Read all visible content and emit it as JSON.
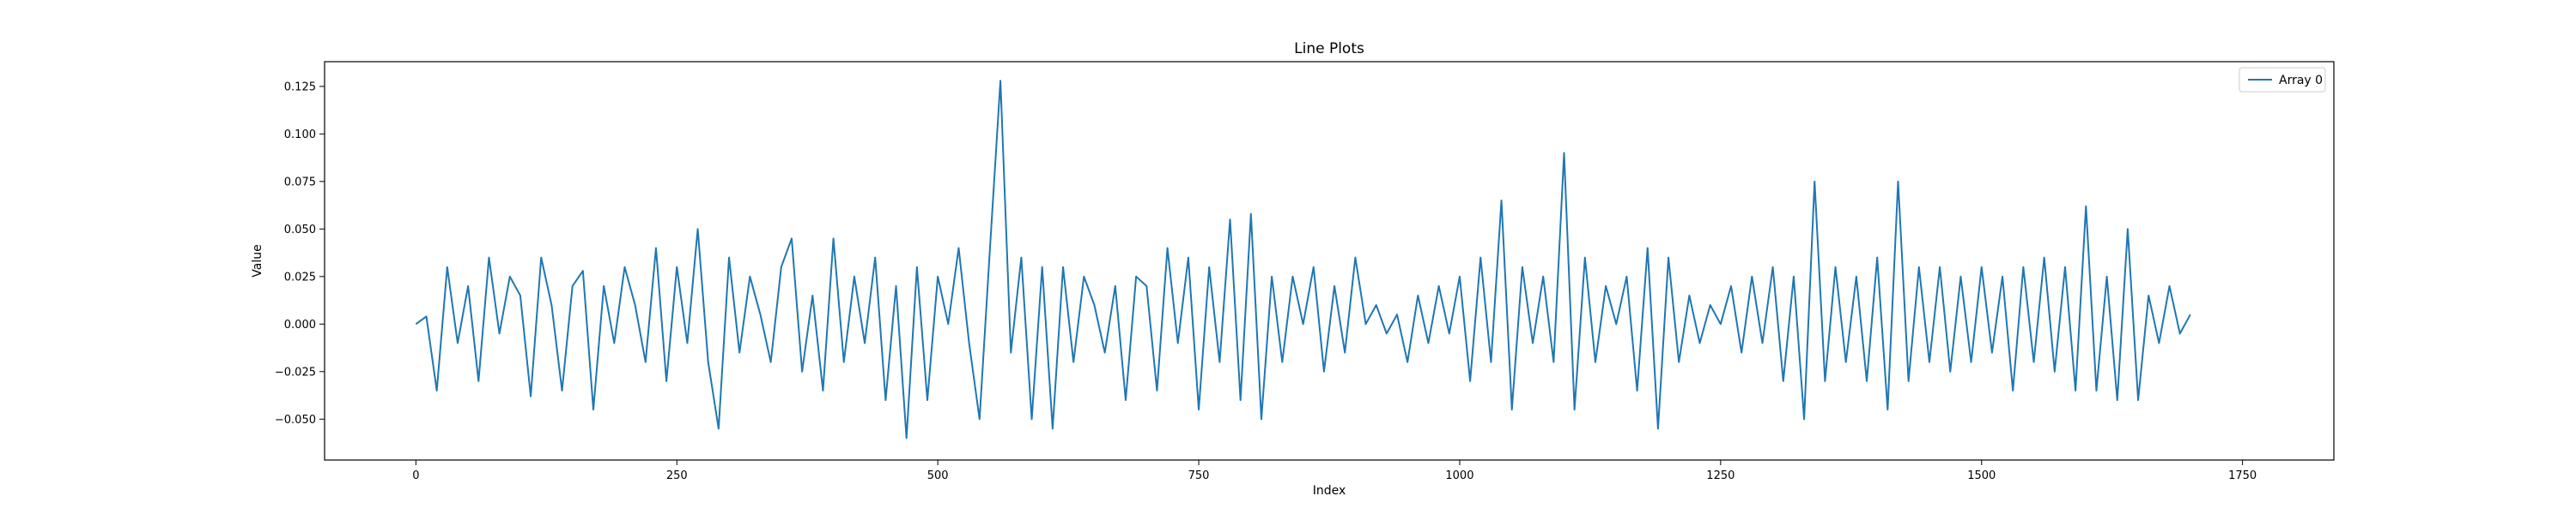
{
  "chart_data": {
    "type": "line",
    "title": "Line Plots",
    "xlabel": "Index",
    "ylabel": "Value",
    "xlim": [
      -87.5,
      1837.5
    ],
    "ylim": [
      -0.0715,
      0.138
    ],
    "xticks": [
      0,
      250,
      500,
      750,
      1000,
      1250,
      1500,
      1750
    ],
    "yticks": [
      -0.05,
      -0.025,
      0.0,
      0.025,
      0.05,
      0.075,
      0.1,
      0.125
    ],
    "xtick_labels": [
      "0",
      "250",
      "500",
      "750",
      "1000",
      "1250",
      "1500",
      "1750"
    ],
    "ytick_labels": [
      "−0.050",
      "−0.025",
      "0.000",
      "0.025",
      "0.050",
      "0.075",
      "0.100",
      "0.125"
    ],
    "grid": false,
    "legend_position": "top-right",
    "series": [
      {
        "name": "Array 0",
        "color": "#1f77b4",
        "x_start": 0,
        "x_step": 10,
        "values": [
          0.0,
          0.004,
          -0.035,
          0.03,
          -0.01,
          0.02,
          -0.03,
          0.035,
          -0.005,
          0.025,
          0.015,
          -0.038,
          0.035,
          0.01,
          -0.035,
          0.02,
          0.028,
          -0.045,
          0.02,
          -0.01,
          0.03,
          0.01,
          -0.02,
          0.04,
          -0.03,
          0.03,
          -0.01,
          0.05,
          -0.02,
          -0.055,
          0.035,
          -0.015,
          0.025,
          0.005,
          -0.02,
          0.03,
          0.045,
          -0.025,
          0.015,
          -0.035,
          0.045,
          -0.02,
          0.025,
          -0.01,
          0.035,
          -0.04,
          0.02,
          -0.06,
          0.03,
          -0.04,
          0.025,
          0.0,
          0.04,
          -0.01,
          -0.05,
          0.04,
          0.128,
          -0.015,
          0.035,
          -0.05,
          0.03,
          -0.055,
          0.03,
          -0.02,
          0.025,
          0.01,
          -0.015,
          0.02,
          -0.04,
          0.025,
          0.02,
          -0.035,
          0.04,
          -0.01,
          0.035,
          -0.045,
          0.03,
          -0.02,
          0.055,
          -0.04,
          0.058,
          -0.05,
          0.025,
          -0.02,
          0.025,
          0.0,
          0.03,
          -0.025,
          0.02,
          -0.015,
          0.035,
          0.0,
          0.01,
          -0.005,
          0.005,
          -0.02,
          0.015,
          -0.01,
          0.02,
          -0.005,
          0.025,
          -0.03,
          0.035,
          -0.02,
          0.065,
          -0.045,
          0.03,
          -0.01,
          0.025,
          -0.02,
          0.09,
          -0.045,
          0.035,
          -0.02,
          0.02,
          0.0,
          0.025,
          -0.035,
          0.04,
          -0.055,
          0.035,
          -0.02,
          0.015,
          -0.01,
          0.01,
          0.0,
          0.02,
          -0.015,
          0.025,
          -0.01,
          0.03,
          -0.03,
          0.025,
          -0.05,
          0.075,
          -0.03,
          0.03,
          -0.02,
          0.025,
          -0.03,
          0.035,
          -0.045,
          0.075,
          -0.03,
          0.03,
          -0.02,
          0.03,
          -0.025,
          0.025,
          -0.02,
          0.03,
          -0.015,
          0.025,
          -0.035,
          0.03,
          -0.02,
          0.035,
          -0.025,
          0.03,
          -0.035,
          0.062,
          -0.035,
          0.025,
          -0.04,
          0.05,
          -0.04,
          0.015,
          -0.01,
          0.02,
          -0.005,
          0.005
        ]
      }
    ]
  }
}
